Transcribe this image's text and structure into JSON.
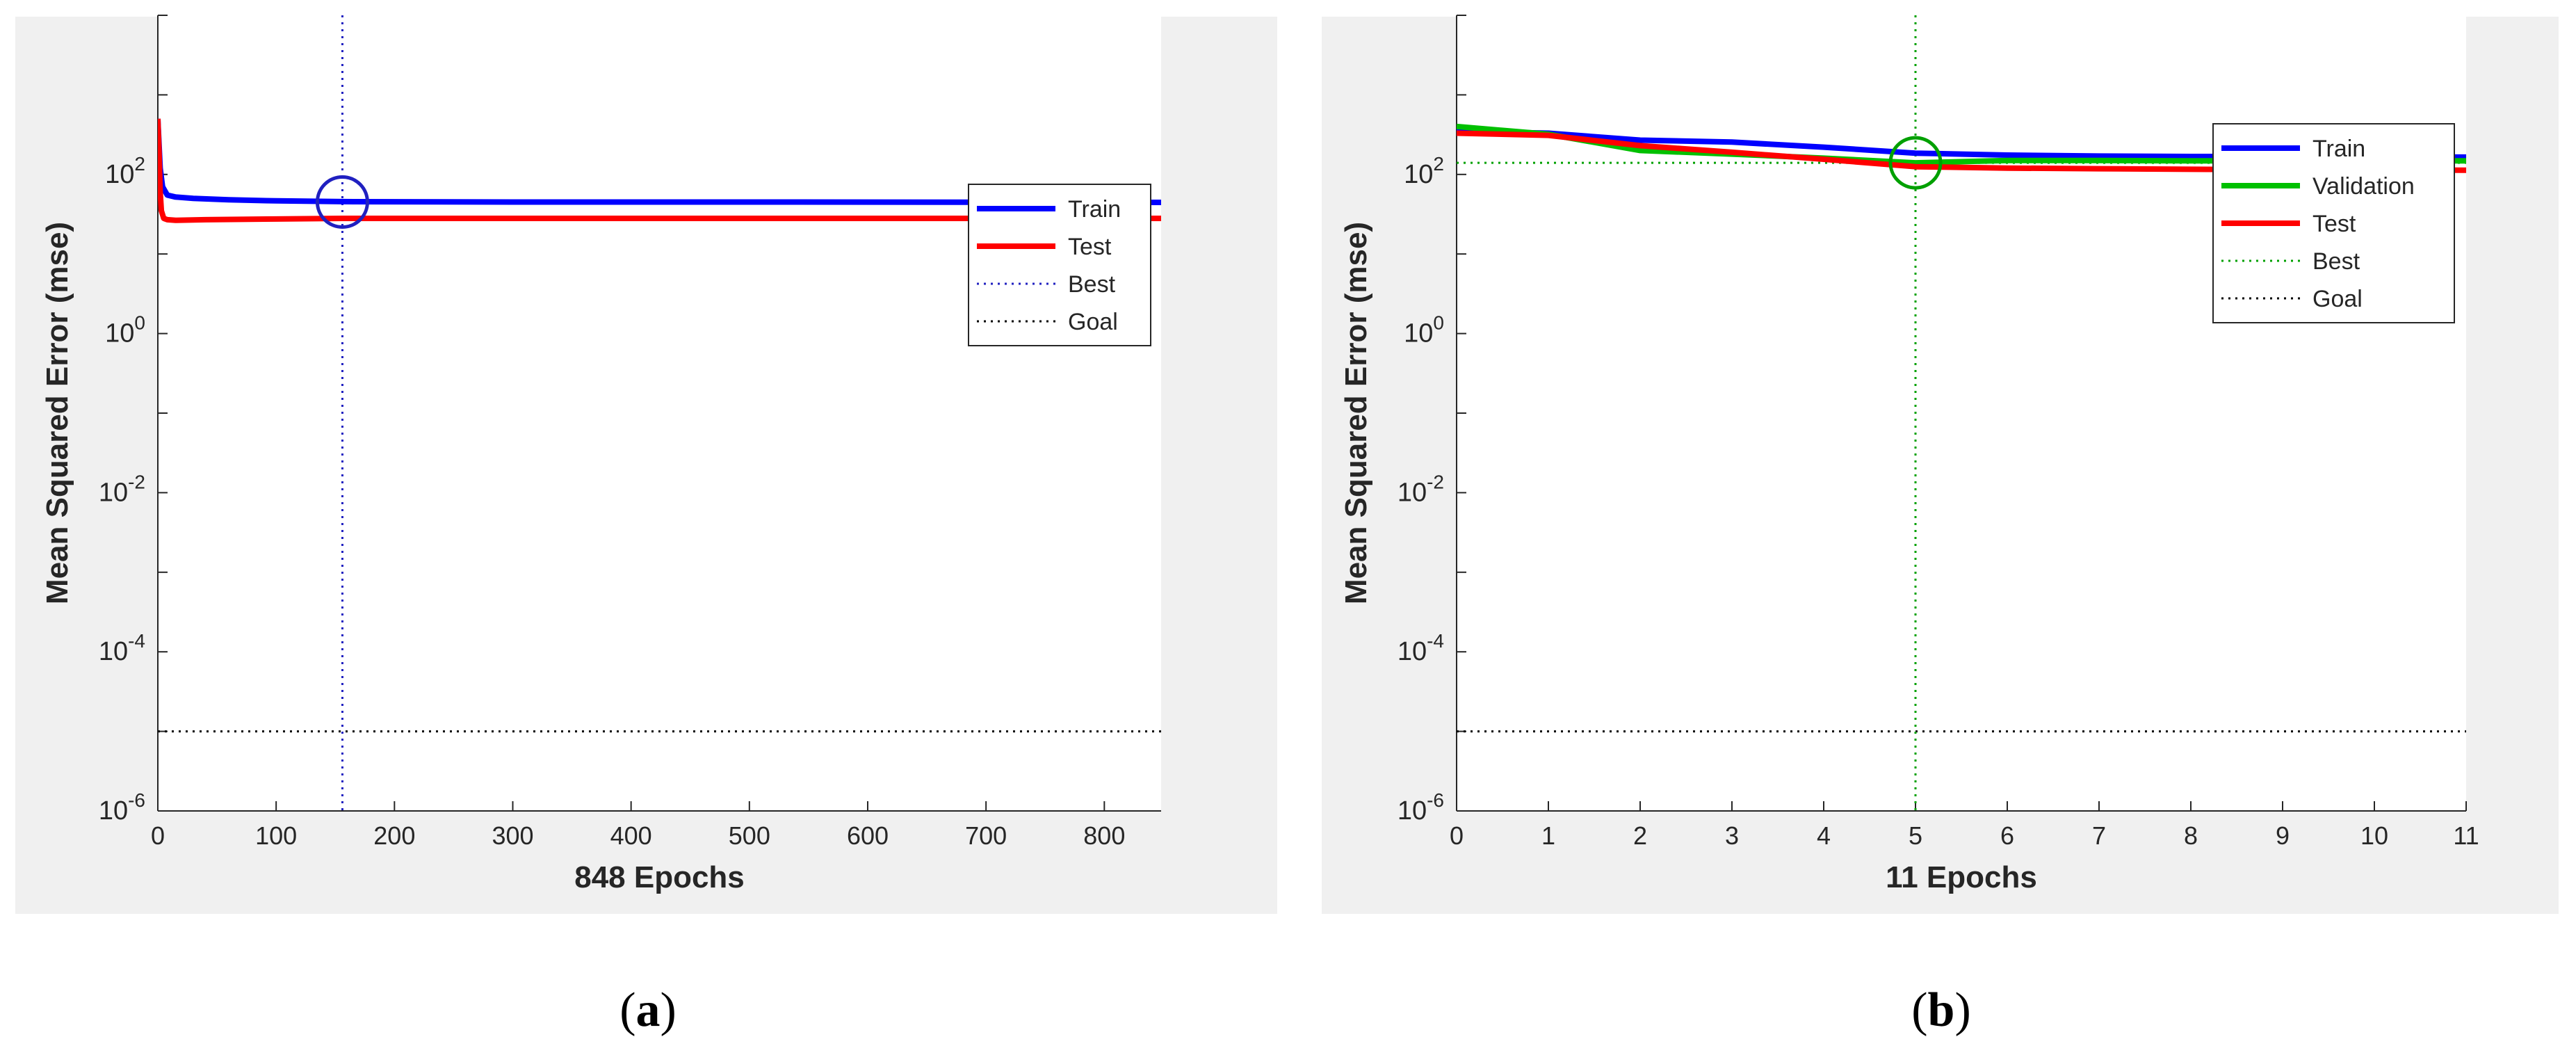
{
  "chart_data": [
    {
      "type": "line",
      "panel_label_open": "(",
      "panel_label_letter": "a",
      "panel_label_close": ")",
      "xlabel": "848 Epochs",
      "ylabel": "Mean Squared Error  (mse)",
      "xlim": [
        0,
        848
      ],
      "ylim_exp": [
        -6,
        4
      ],
      "yscale": "log",
      "xticks": [
        0,
        100,
        200,
        300,
        400,
        500,
        600,
        700,
        800
      ],
      "xtick_labels": [
        "0",
        "100",
        "200",
        "300",
        "400",
        "500",
        "600",
        "700",
        "800"
      ],
      "yticks_exp": [
        -6,
        -4,
        -2,
        0,
        2
      ],
      "ytick_base": "10",
      "ytick_exps": [
        "-6",
        "-4",
        "-2",
        "0",
        "2"
      ],
      "best_epoch": 156,
      "best_value": 45,
      "goal": 1e-05,
      "series": [
        {
          "name": "Train",
          "color": "#0000ff",
          "x": [
            0,
            2,
            4,
            8,
            15,
            30,
            60,
            100,
            156,
            300,
            500,
            848
          ],
          "y": [
            500,
            120,
            70,
            55,
            52,
            50,
            48,
            46.5,
            45.5,
            45,
            45,
            44.5
          ]
        },
        {
          "name": "Test",
          "color": "#ff0000",
          "x": [
            0,
            1,
            2,
            3,
            5,
            8,
            15,
            40,
            100,
            156,
            400,
            848
          ],
          "y": [
            500,
            200,
            60,
            35,
            28,
            27,
            26.5,
            27,
            27.5,
            28,
            28,
            28
          ]
        }
      ],
      "legend": [
        {
          "label": "Train",
          "color": "#0000ff",
          "style": "solid"
        },
        {
          "label": "Test",
          "color": "#ff0000",
          "style": "solid"
        },
        {
          "label": "Best",
          "color": "#2020c0",
          "style": "dotted"
        },
        {
          "label": "Goal",
          "color": "#000000",
          "style": "dotted"
        }
      ],
      "legend_position": "upper-right"
    },
    {
      "type": "line",
      "panel_label_open": "(",
      "panel_label_letter": "b",
      "panel_label_close": ")",
      "xlabel": "11 Epochs",
      "ylabel": "Mean Squared Error  (mse)",
      "xlim": [
        0,
        11
      ],
      "ylim_exp": [
        -6,
        4
      ],
      "yscale": "log",
      "xticks": [
        0,
        1,
        2,
        3,
        4,
        5,
        6,
        7,
        8,
        9,
        10,
        11
      ],
      "xtick_labels": [
        "0",
        "1",
        "2",
        "3",
        "4",
        "5",
        "6",
        "7",
        "8",
        "9",
        "10",
        "11"
      ],
      "yticks_exp": [
        -6,
        -4,
        -2,
        0,
        2
      ],
      "ytick_base": "10",
      "ytick_exps": [
        "-6",
        "-4",
        "-2",
        "0",
        "2"
      ],
      "best_epoch": 5,
      "best_value": 140,
      "goal": 1e-05,
      "series": [
        {
          "name": "Train",
          "color": "#0000ff",
          "x": [
            0,
            1,
            2,
            3,
            4,
            5,
            6,
            7,
            8,
            9,
            10,
            11
          ],
          "y": [
            350,
            330,
            270,
            255,
            220,
            185,
            175,
            170,
            168,
            167,
            166,
            165
          ]
        },
        {
          "name": "Validation",
          "color": "#00c000",
          "x": [
            0,
            1,
            2,
            3,
            4,
            5,
            6,
            7,
            8,
            9,
            10,
            11
          ],
          "y": [
            400,
            320,
            200,
            180,
            160,
            140,
            150,
            150,
            148,
            148,
            148,
            148
          ]
        },
        {
          "name": "Test",
          "color": "#ff0000",
          "x": [
            0,
            1,
            2,
            3,
            4,
            5,
            6,
            7,
            8,
            9,
            10,
            11
          ],
          "y": [
            330,
            310,
            230,
            190,
            155,
            125,
            120,
            118,
            116,
            115,
            114,
            113
          ]
        }
      ],
      "legend": [
        {
          "label": "Train",
          "color": "#0000ff",
          "style": "solid"
        },
        {
          "label": "Validation",
          "color": "#00c000",
          "style": "solid"
        },
        {
          "label": "Test",
          "color": "#ff0000",
          "style": "solid"
        },
        {
          "label": "Best",
          "color": "#00a000",
          "style": "dotted"
        },
        {
          "label": "Goal",
          "color": "#000000",
          "style": "dotted"
        }
      ],
      "legend_position": "upper-right"
    }
  ]
}
